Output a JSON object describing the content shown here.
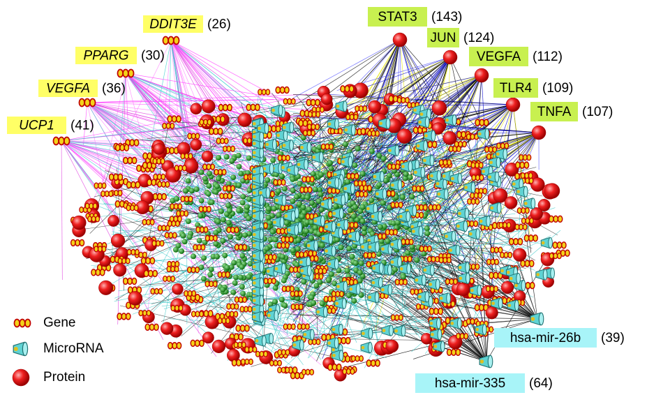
{
  "gene_hubs": [
    {
      "name": "DDIT3E",
      "count": "(26)"
    },
    {
      "name": "PPARG",
      "count": "(30)"
    },
    {
      "name": "VEGFA",
      "count": "(36)"
    },
    {
      "name": "UCP1",
      "count": "(41)"
    }
  ],
  "protein_hubs": [
    {
      "name": "STAT3",
      "count": "(143)"
    },
    {
      "name": "JUN",
      "count": "(124)"
    },
    {
      "name": "VEGFA",
      "count": "(112)"
    },
    {
      "name": "TLR4",
      "count": "(109)"
    },
    {
      "name": "TNFA",
      "count": "(107)"
    }
  ],
  "microrna_hubs": [
    {
      "name": "hsa-mir-26b",
      "count": "(39)"
    },
    {
      "name": "hsa-mir-335",
      "count": "(64)"
    }
  ],
  "legend": [
    "Gene",
    "MicroRNA",
    "Protein"
  ]
}
